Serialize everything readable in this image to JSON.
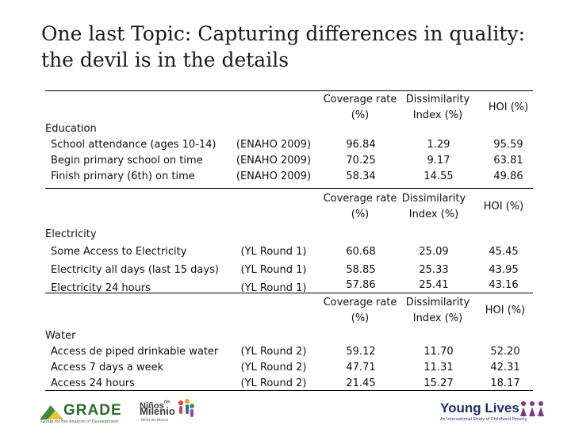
{
  "title": "One last Topic: Capturing differences in quality:  the devil is in the details",
  "headers": {
    "coverage": "Coverage rate (%)",
    "dissimilarity": "Dissimilarity Index (%)",
    "hoi": "HOI (%)"
  },
  "education": {
    "label": "Education",
    "rows": [
      {
        "name": "School attendance (ages 10-14)",
        "source": "(ENAHO 2009)",
        "coverage": "96.84",
        "dissimilarity": "1.29",
        "hoi": "95.59"
      },
      {
        "name": "Begin primary school on time",
        "source": "(ENAHO 2009)",
        "coverage": "70.25",
        "dissimilarity": "9.17",
        "hoi": "63.81"
      },
      {
        "name": "Finish primary (6th) on time",
        "source": "(ENAHO 2009)",
        "coverage": "58.34",
        "dissimilarity": "14.55",
        "hoi": "49.86"
      }
    ]
  },
  "electricity": {
    "label": "Electricity",
    "rows": [
      {
        "name": "Some Access to Electricity",
        "source": "(YL Round 1)",
        "coverage": "60.68",
        "dissimilarity": "25.09",
        "hoi": "45.45"
      },
      {
        "name": "Electricity all days (last 15 days)",
        "source": "(YL Round 1)",
        "coverage": "58.85",
        "dissimilarity": "25.33",
        "hoi": "43.95"
      },
      {
        "name": "Electricity 24 hours",
        "source": "(YL Round 1)",
        "coverage": "57.86",
        "dissimilarity": "25.41",
        "hoi": "43.16"
      }
    ]
  },
  "water": {
    "label": "Water",
    "rows": [
      {
        "name": "Access de piped drinkable water",
        "source": "(YL Round 2)",
        "coverage": "59.12",
        "dissimilarity": "11.70",
        "hoi": "52.20"
      },
      {
        "name": "Access 7 days a week",
        "source": "(YL Round 2)",
        "coverage": "47.71",
        "dissimilarity": "11.31",
        "hoi": "42.31"
      },
      {
        "name": "Access 24 hours",
        "source": "(YL Round 2)",
        "coverage": "21.45",
        "dissimilarity": "15.27",
        "hoi": "18.17"
      }
    ]
  },
  "logos": {
    "grade_name": "GRADE",
    "grade_tagline": "Group for the Analysis of Development",
    "ninos_line1": "Niños",
    "ninos_del": "del",
    "ninos_line2": "Milenio",
    "ninos_tagline": "Niños del Milenio",
    "young_lives": "Young Lives",
    "young_lives_tagline": "An International Study of Childhood Poverty",
    "brand_colors": {
      "grade_green": "#3e8b3a",
      "grade_yellow": "#e9c53a",
      "young_lives_navy": "#1f2f6b",
      "young_lives_purple": "#7a3a8c"
    }
  }
}
